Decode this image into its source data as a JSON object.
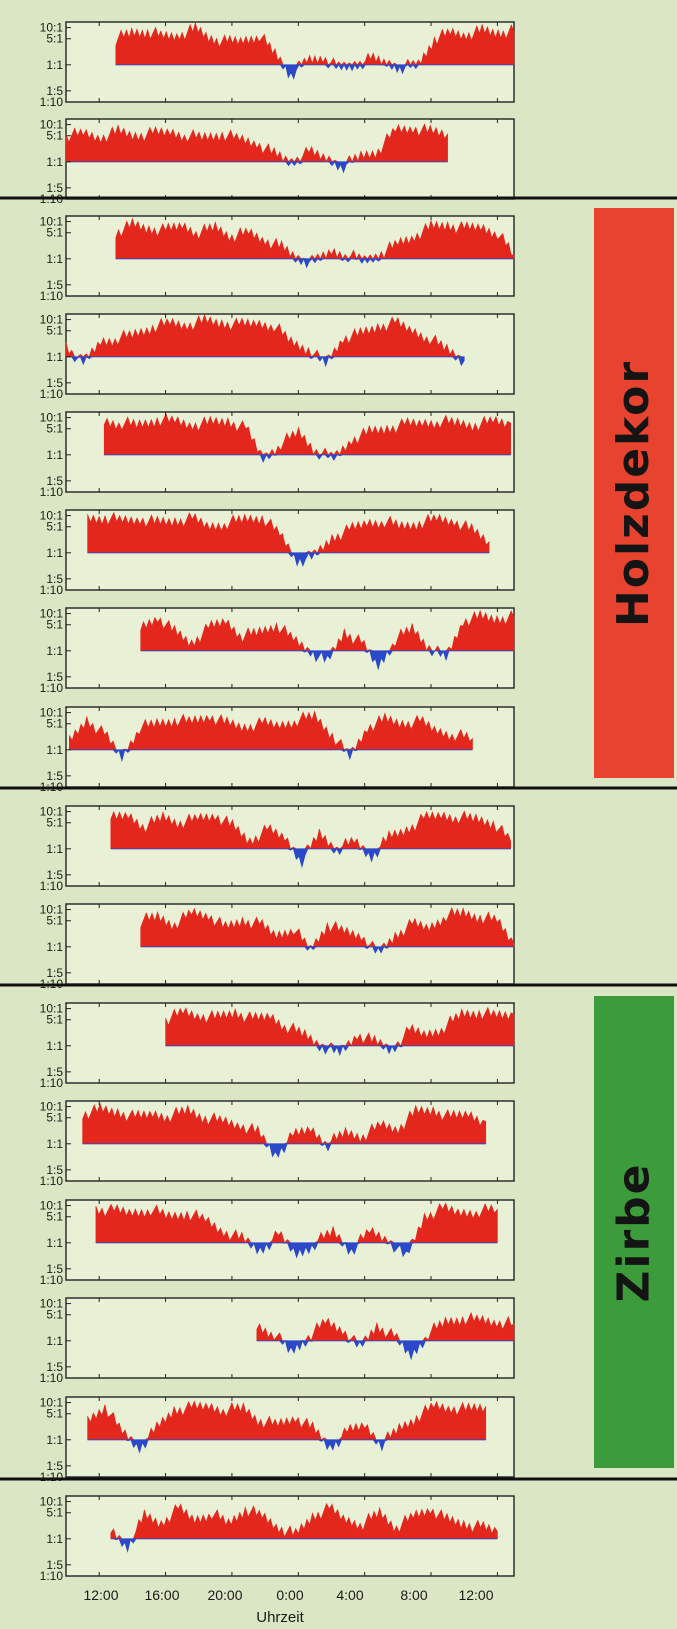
{
  "colors": {
    "background": "#dbe7c4",
    "plot_background": "#e8f0d6",
    "above_fill": "#e3271c",
    "below_fill": "#2b48c8",
    "axis": "#222222",
    "holzdekor_label": "#e8432f",
    "zirbe_label": "#3c9b3a",
    "separator": "#111111"
  },
  "group_labels": {
    "holzdekor": "Holzdekor",
    "zirbe": "Zirbe"
  },
  "chart_data": {
    "type": "area",
    "panel_count": 16,
    "y_tick_labels": [
      "10:1",
      "5:1",
      "1:1",
      "1:5",
      "1:10"
    ],
    "x_tick_labels": [
      "12:00",
      "16:00",
      "20:00",
      "0:00",
      "4:00",
      "8:00",
      "12:00"
    ],
    "x_unit": "hours from 10:00",
    "x_range": [
      10,
      37
    ],
    "y_ticks_log": [
      1,
      0.7,
      0,
      -0.7,
      -1
    ],
    "y_range_log": [
      -1,
      1.15
    ],
    "xlabel": "Uhrzeit",
    "grid": false,
    "series_note": "ratio values on log10 scale; red above 1:1, blue below 1:1",
    "panels": [
      {
        "group": "none",
        "start": 13.0,
        "end": 37.0,
        "values": [
          0.7,
          0.85,
          0.9,
          0.75,
          0.8,
          0.95,
          0.7,
          0.6,
          0.65,
          0.8,
          0.3,
          -0.25,
          0.1,
          0.2,
          -0.1,
          0.0,
          0.15,
          0.05,
          -0.05,
          0.0,
          0.7,
          0.85,
          0.8,
          0.9,
          0.85,
          0.9
        ]
      },
      {
        "group": "none",
        "start": 10.0,
        "end": 33.0,
        "values": [
          0.7,
          0.75,
          0.65,
          0.8,
          0.7,
          0.75,
          0.8,
          0.7,
          0.65,
          0.75,
          0.6,
          0.5,
          0.2,
          0.0,
          0.25,
          0.1,
          -0.1,
          0.15,
          0.3,
          0.85,
          0.9,
          0.8,
          0.75
        ]
      },
      {
        "group": "holzdekor",
        "start": 13.0,
        "end": 37.0,
        "values": [
          0.7,
          0.9,
          0.8,
          0.75,
          0.9,
          0.7,
          0.85,
          0.6,
          0.7,
          0.5,
          0.3,
          0.0,
          -0.1,
          0.2,
          0.1,
          -0.05,
          0.15,
          0.4,
          0.6,
          0.85,
          0.9,
          0.8,
          0.85,
          0.7,
          0.1
        ]
      },
      {
        "group": "holzdekor",
        "start": 10.0,
        "end": 34.0,
        "values": [
          0.3,
          -0.2,
          0.4,
          0.5,
          0.6,
          0.8,
          0.9,
          0.85,
          0.95,
          0.9,
          0.85,
          0.9,
          0.85,
          0.4,
          0.2,
          -0.2,
          0.5,
          0.6,
          0.8,
          0.9,
          0.7,
          0.5,
          0.2,
          -0.1
        ]
      },
      {
        "group": "holzdekor",
        "start": 12.3,
        "end": 36.8,
        "values": [
          0.9,
          0.85,
          0.8,
          0.95,
          0.9,
          0.8,
          0.85,
          0.9,
          0.7,
          -0.1,
          0.3,
          0.6,
          0.1,
          -0.1,
          0.4,
          0.6,
          0.7,
          0.8,
          0.85,
          0.9,
          0.85,
          0.8,
          0.9,
          0.85
        ]
      },
      {
        "group": "holzdekor",
        "start": 11.3,
        "end": 35.5,
        "values": [
          0.9,
          0.95,
          0.85,
          0.9,
          0.8,
          0.85,
          0.9,
          0.7,
          0.8,
          0.9,
          0.95,
          0.5,
          -0.2,
          -0.1,
          0.4,
          0.6,
          0.8,
          0.85,
          0.7,
          0.8,
          0.9,
          0.85,
          0.6,
          0.3
        ]
      },
      {
        "group": "holzdekor",
        "start": 14.5,
        "end": 37.0,
        "values": [
          0.6,
          0.9,
          0.5,
          0.2,
          0.6,
          0.8,
          0.4,
          0.5,
          0.7,
          0.3,
          0.0,
          -0.3,
          0.5,
          0.2,
          -0.4,
          0.3,
          0.6,
          0.1,
          -0.2,
          0.8,
          0.9,
          0.85,
          0.9
        ]
      },
      {
        "group": "holzdekor",
        "start": 10.2,
        "end": 34.5,
        "values": [
          0.2,
          0.8,
          0.4,
          -0.2,
          0.6,
          0.7,
          0.8,
          0.75,
          0.9,
          0.7,
          0.6,
          0.7,
          0.65,
          0.8,
          0.9,
          0.4,
          -0.2,
          0.6,
          0.8,
          0.7,
          0.75,
          0.5,
          0.4,
          0.3
        ]
      },
      {
        "group": "zirbe",
        "start": 12.7,
        "end": 36.8,
        "values": [
          0.8,
          0.9,
          0.6,
          0.85,
          0.7,
          0.8,
          0.9,
          0.6,
          0.2,
          0.5,
          0.3,
          -0.3,
          0.4,
          0.0,
          0.2,
          -0.2,
          0.3,
          0.5,
          0.8,
          0.9,
          0.85,
          0.8,
          0.7,
          0.2
        ]
      },
      {
        "group": "zirbe",
        "start": 14.5,
        "end": 37.0,
        "values": [
          0.7,
          0.8,
          0.6,
          0.9,
          0.85,
          0.5,
          0.7,
          0.6,
          0.3,
          0.5,
          -0.1,
          0.6,
          0.4,
          0.3,
          -0.2,
          0.3,
          0.6,
          0.5,
          0.85,
          0.9,
          0.8,
          0.7,
          0.1
        ]
      },
      {
        "group": "zirbe",
        "start": 16.0,
        "end": 37.0,
        "values": [
          0.7,
          0.9,
          0.8,
          0.75,
          0.9,
          0.7,
          0.8,
          0.5,
          0.3,
          0.0,
          -0.2,
          0.3,
          0.1,
          -0.1,
          0.4,
          0.3,
          0.5,
          0.85,
          0.9,
          0.8,
          0.85
        ]
      },
      {
        "group": "zirbe",
        "start": 11.0,
        "end": 35.3,
        "values": [
          0.8,
          0.9,
          0.85,
          0.7,
          0.8,
          0.75,
          0.9,
          0.7,
          0.6,
          0.5,
          0.3,
          -0.3,
          0.2,
          0.4,
          0.0,
          0.3,
          0.2,
          0.5,
          0.4,
          0.85,
          0.9,
          0.7,
          0.8,
          0.6
        ]
      },
      {
        "group": "zirbe",
        "start": 11.8,
        "end": 36.0,
        "values": [
          0.9,
          0.85,
          0.8,
          0.9,
          0.7,
          0.8,
          0.6,
          0.3,
          0.1,
          -0.2,
          0.2,
          -0.3,
          0.0,
          0.3,
          -0.2,
          0.3,
          0.1,
          -0.4,
          0.7,
          0.9,
          0.8,
          0.85,
          0.9
        ]
      },
      {
        "group": "zirbe",
        "start": 21.5,
        "end": 37.0,
        "values": [
          0.4,
          0.2,
          -0.3,
          0.1,
          0.5,
          0.3,
          -0.2,
          0.4,
          0.1,
          -0.4,
          0.2,
          0.5,
          0.6,
          0.55,
          0.5,
          0.45
        ]
      },
      {
        "group": "zirbe",
        "start": 11.3,
        "end": 35.3,
        "values": [
          0.5,
          0.9,
          0.2,
          -0.2,
          0.3,
          0.8,
          0.85,
          0.9,
          0.8,
          0.85,
          0.5,
          0.4,
          0.6,
          0.3,
          -0.2,
          0.2,
          0.4,
          -0.1,
          0.3,
          0.6,
          0.9,
          0.85,
          0.8,
          0.9
        ]
      },
      {
        "group": "none",
        "start": 12.7,
        "end": 36.0,
        "values": [
          0.2,
          -0.2,
          0.6,
          0.4,
          0.8,
          0.5,
          0.7,
          0.4,
          0.8,
          0.6,
          0.3,
          0.1,
          0.6,
          0.8,
          0.5,
          0.4,
          0.7,
          0.3,
          0.6,
          0.8,
          0.5,
          0.4,
          0.3,
          0.2
        ]
      }
    ]
  }
}
